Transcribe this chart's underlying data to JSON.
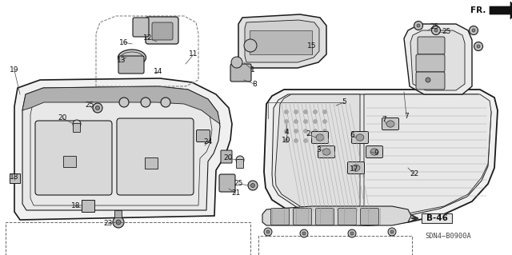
{
  "bg": "#ffffff",
  "lc": "#1a1a1a",
  "gray_fill": "#d8d8d8",
  "gray_dark": "#b0b0b0",
  "gray_light": "#ececec",
  "figsize": [
    6.4,
    3.19
  ],
  "dpi": 100,
  "text_SDN": "SDN4-B0900A",
  "text_FR": "FR."
}
